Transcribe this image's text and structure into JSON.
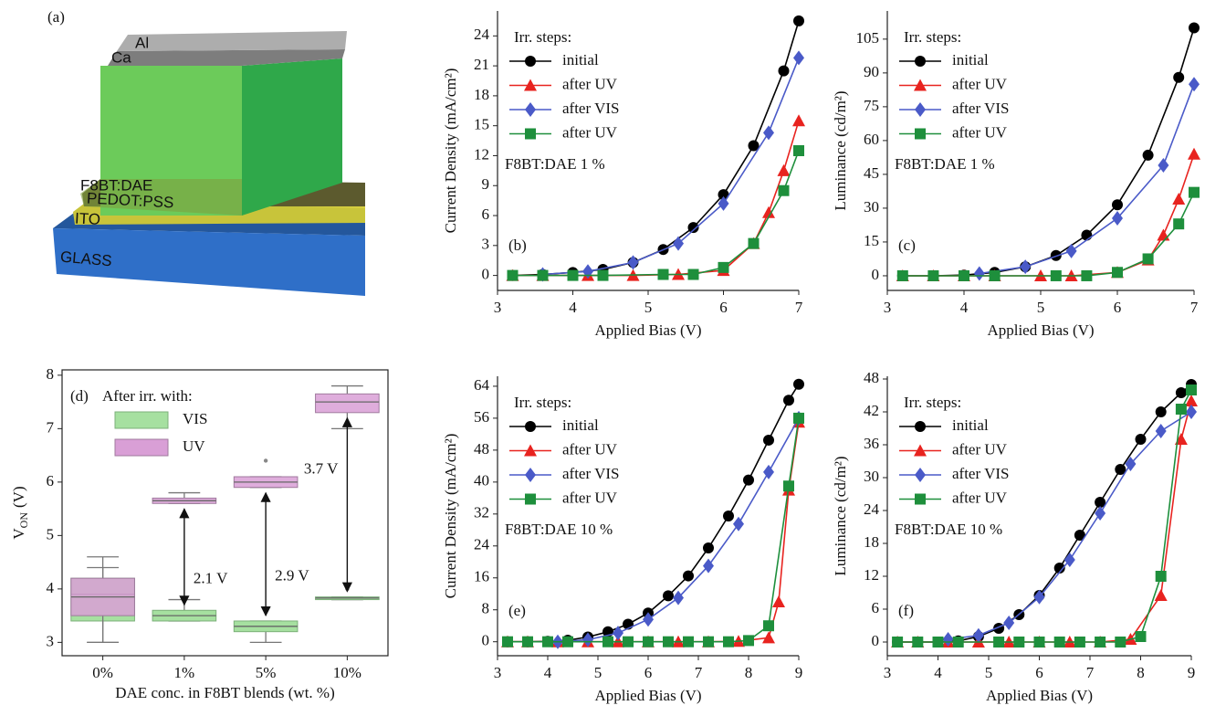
{
  "diagram": {
    "panel_label": "(a)",
    "layers": [
      "Al",
      "Ca",
      "F8BT:DAE",
      "PEDOT:PSS",
      "ITO",
      "GLASS"
    ]
  },
  "chart_data": [
    {
      "type": "line",
      "panel_label": "(b)",
      "x_label": "Applied Bias (V)",
      "y_label": "Current Density (mA/cm²)",
      "legend_title": "Irr. steps:",
      "annotation": "F8BT:DAE 1 %",
      "xlim": [
        3,
        7
      ],
      "xticks": [
        3,
        4,
        5,
        6,
        7
      ],
      "ylim": [
        -1.5,
        26.5
      ],
      "yticks": [
        0,
        3,
        6,
        9,
        12,
        15,
        18,
        21,
        24
      ],
      "series": [
        {
          "name": "initial",
          "color": "#000000",
          "marker": "circle",
          "x": [
            3.2,
            3.6,
            4.0,
            4.4,
            4.8,
            5.2,
            5.6,
            6.0,
            6.4,
            6.8,
            7.0
          ],
          "values": [
            0,
            0.1,
            0.3,
            0.6,
            1.3,
            2.6,
            4.8,
            8.1,
            13.0,
            20.5,
            25.5
          ]
        },
        {
          "name": "after UV",
          "color": "#e8231f",
          "marker": "triangle",
          "x": [
            3.2,
            3.6,
            4.2,
            4.8,
            5.4,
            6.0,
            6.4,
            6.6,
            6.8,
            7.0
          ],
          "values": [
            0,
            0,
            0,
            0,
            0.1,
            0.5,
            3.2,
            6.3,
            10.5,
            15.5
          ]
        },
        {
          "name": "after VIS",
          "color": "#4a5ac8",
          "marker": "diamond",
          "x": [
            3.6,
            4.2,
            4.8,
            5.4,
            6.0,
            6.6,
            7.0
          ],
          "values": [
            0.1,
            0.4,
            1.3,
            3.2,
            7.2,
            14.3,
            21.8
          ]
        },
        {
          "name": "after UV",
          "color": "#1e8f3c",
          "marker": "square",
          "x": [
            3.2,
            3.6,
            4.0,
            4.4,
            5.2,
            5.6,
            6.0,
            6.4,
            6.8,
            7.0
          ],
          "values": [
            0,
            0,
            0,
            0,
            0.1,
            0.1,
            0.8,
            3.2,
            8.5,
            12.5
          ]
        }
      ]
    },
    {
      "type": "line",
      "panel_label": "(c)",
      "x_label": "Applied Bias (V)",
      "y_label": "Luminance (cd/m²)",
      "legend_title": "Irr. steps:",
      "annotation": "F8BT:DAE 1 %",
      "xlim": [
        3,
        7
      ],
      "xticks": [
        3,
        4,
        5,
        6,
        7
      ],
      "ylim": [
        -6.5,
        117.5
      ],
      "yticks": [
        0,
        15,
        30,
        45,
        60,
        75,
        90,
        105
      ],
      "series": [
        {
          "name": "initial",
          "color": "#000000",
          "marker": "circle",
          "x": [
            3.2,
            3.6,
            4.0,
            4.4,
            4.8,
            5.2,
            5.6,
            6.0,
            6.4,
            6.8,
            7.0
          ],
          "values": [
            0,
            0,
            0.3,
            1.5,
            4,
            9,
            18,
            31.5,
            53.5,
            88,
            110
          ]
        },
        {
          "name": "after UV",
          "color": "#e8231f",
          "marker": "triangle",
          "x": [
            3.2,
            3.6,
            4.0,
            4.4,
            5.0,
            5.4,
            6.0,
            6.4,
            6.6,
            6.8,
            7.0
          ],
          "values": [
            0,
            0,
            0,
            0,
            0,
            0,
            1.5,
            7,
            18,
            34,
            54
          ]
        },
        {
          "name": "after VIS",
          "color": "#4a5ac8",
          "marker": "diamond",
          "x": [
            4.2,
            4.8,
            5.4,
            6.0,
            6.6,
            7.0
          ],
          "values": [
            1,
            4,
            11,
            25.5,
            49,
            85
          ]
        },
        {
          "name": "after UV",
          "color": "#1e8f3c",
          "marker": "square",
          "x": [
            3.2,
            3.6,
            4.0,
            4.4,
            5.2,
            5.6,
            6.0,
            6.4,
            6.8,
            7.0
          ],
          "values": [
            0,
            0,
            0,
            0,
            0,
            0,
            1.5,
            7.5,
            23,
            37
          ]
        }
      ]
    },
    {
      "type": "box",
      "panel_label": "(d)",
      "x_label": "DAE conc. in F8BT blends (wt. %)",
      "y_label": {
        "symbol": "V",
        "subscript": "ON",
        "unit": "(V)"
      },
      "legend_title": "After irr. with:",
      "categories": [
        "0%",
        "1%",
        "5%",
        "10%"
      ],
      "ylim": [
        2.75,
        8.1
      ],
      "yticks": [
        3,
        4,
        5,
        6,
        7,
        8
      ],
      "series": [
        {
          "name": "VIS",
          "color": "#a6e0a0",
          "edge": "#7cb07a",
          "boxes": [
            {
              "whislo": 3.0,
              "q1": 3.4,
              "med": 3.9,
              "q3": 4.2,
              "whishi": 4.6
            },
            {
              "whislo": 3.4,
              "q1": 3.4,
              "med": 3.5,
              "q3": 3.6,
              "whishi": 3.8
            },
            {
              "whislo": 3.0,
              "q1": 3.2,
              "med": 3.3,
              "q3": 3.4,
              "whishi": 3.4
            },
            {
              "whislo": 3.8,
              "q1": 3.8,
              "med": 3.83,
              "q3": 3.85,
              "whishi": 3.85,
              "fliers": [
                4.0
              ]
            }
          ]
        },
        {
          "name": "UV",
          "color": "#d99fd6",
          "edge": "#a07a9e",
          "boxes": [
            {
              "whislo": 3.0,
              "q1": 3.5,
              "med": 3.85,
              "q3": 4.2,
              "whishi": 4.4
            },
            {
              "whislo": 5.6,
              "q1": 5.6,
              "med": 5.65,
              "q3": 5.7,
              "whishi": 5.8
            },
            {
              "whislo": 5.9,
              "q1": 5.9,
              "med": 6.0,
              "q3": 6.1,
              "whishi": 6.1,
              "fliers": [
                6.4
              ]
            },
            {
              "whislo": 7.0,
              "q1": 7.3,
              "med": 7.5,
              "q3": 7.65,
              "whishi": 7.8
            }
          ]
        }
      ],
      "annotations": [
        "2.1 V",
        "2.9 V",
        "3.7 V"
      ]
    },
    {
      "type": "line",
      "panel_label": "(e)",
      "x_label": "Applied Bias (V)",
      "y_label": "Current Density (mA/cm²)",
      "legend_title": "Irr. steps:",
      "annotation": "F8BT:DAE 10 %",
      "xlim": [
        3,
        9
      ],
      "xticks": [
        3,
        4,
        5,
        6,
        7,
        8,
        9
      ],
      "ylim": [
        -3.5,
        66.5
      ],
      "yticks": [
        0,
        8,
        16,
        24,
        32,
        40,
        48,
        56,
        64
      ],
      "series": [
        {
          "name": "initial",
          "color": "#000000",
          "marker": "circle",
          "x": [
            3.2,
            3.6,
            4.0,
            4.4,
            4.8,
            5.2,
            5.6,
            6.0,
            6.4,
            6.8,
            7.2,
            7.6,
            8.0,
            8.4,
            8.8,
            9.0
          ],
          "values": [
            0,
            0,
            0.1,
            0.4,
            1.2,
            2.5,
            4.4,
            7.2,
            11.5,
            16.5,
            23.5,
            31.5,
            40.5,
            50.5,
            60.5,
            64.5
          ]
        },
        {
          "name": "after UV",
          "color": "#e8231f",
          "marker": "triangle",
          "x": [
            3.2,
            3.6,
            4.2,
            4.8,
            5.4,
            6.0,
            6.6,
            7.2,
            7.8,
            8.4,
            8.6,
            8.8,
            9.0
          ],
          "values": [
            0,
            0,
            0,
            0,
            0,
            0,
            0,
            0,
            0.1,
            1,
            10,
            38,
            55
          ]
        },
        {
          "name": "after VIS",
          "color": "#4a5ac8",
          "marker": "diamond",
          "x": [
            4.2,
            4.8,
            5.4,
            6.0,
            6.6,
            7.2,
            7.8,
            8.4,
            9.0
          ],
          "values": [
            0,
            0.5,
            2.2,
            5.6,
            11,
            19,
            29.5,
            42.5,
            56
          ]
        },
        {
          "name": "after UV",
          "color": "#1e8f3c",
          "marker": "square",
          "x": [
            3.2,
            3.6,
            4.0,
            4.4,
            5.2,
            5.6,
            6.0,
            6.4,
            6.8,
            7.2,
            7.6,
            8.0,
            8.4,
            8.8,
            9.0
          ],
          "values": [
            0,
            0,
            0,
            0,
            0,
            0,
            0,
            0,
            0,
            0,
            0,
            0.3,
            4,
            39,
            56
          ]
        }
      ]
    },
    {
      "type": "line",
      "panel_label": "(f)",
      "x_label": "Applied Bias (V)",
      "y_label": "Luminance (cd/m²)",
      "legend_title": "Irr. steps:",
      "annotation": "F8BT:DAE 10 %",
      "xlim": [
        3,
        9
      ],
      "xticks": [
        3,
        4,
        5,
        6,
        7,
        8,
        9
      ],
      "ylim": [
        -2.5,
        48.5
      ],
      "yticks": [
        0,
        6,
        12,
        18,
        24,
        30,
        36,
        42,
        48
      ],
      "series": [
        {
          "name": "initial",
          "color": "#000000",
          "marker": "circle",
          "x": [
            3.2,
            3.6,
            4.0,
            4.4,
            4.8,
            5.2,
            5.6,
            6.0,
            6.4,
            6.8,
            7.2,
            7.6,
            8.0,
            8.4,
            8.8,
            9.0
          ],
          "values": [
            0,
            0,
            0,
            0.2,
            1,
            2.5,
            5,
            8.5,
            13.5,
            19.5,
            25.5,
            31.5,
            37,
            42,
            45.5,
            47
          ]
        },
        {
          "name": "after UV",
          "color": "#e8231f",
          "marker": "triangle",
          "x": [
            3.2,
            3.6,
            4.2,
            4.8,
            5.4,
            6.0,
            6.6,
            7.2,
            7.8,
            8.4,
            8.8,
            9.0
          ],
          "values": [
            0,
            0,
            0,
            0,
            0,
            0,
            0,
            0,
            0.5,
            8.5,
            37,
            44
          ]
        },
        {
          "name": "after VIS",
          "color": "#4a5ac8",
          "marker": "diamond",
          "x": [
            4.2,
            4.8,
            5.4,
            6.0,
            6.6,
            7.2,
            7.8,
            8.4,
            9.0
          ],
          "values": [
            0.5,
            1.2,
            3.5,
            8.2,
            15,
            23.5,
            32.5,
            38.5,
            42
          ]
        },
        {
          "name": "after UV",
          "color": "#1e8f3c",
          "marker": "square",
          "x": [
            3.2,
            3.6,
            4.0,
            4.4,
            5.2,
            5.6,
            6.0,
            6.4,
            6.8,
            7.2,
            7.6,
            8.0,
            8.4,
            8.8,
            9.0
          ],
          "values": [
            0,
            0,
            0,
            0,
            0,
            0,
            0,
            0,
            0,
            0,
            0,
            1,
            12,
            42.5,
            46
          ]
        }
      ]
    }
  ]
}
